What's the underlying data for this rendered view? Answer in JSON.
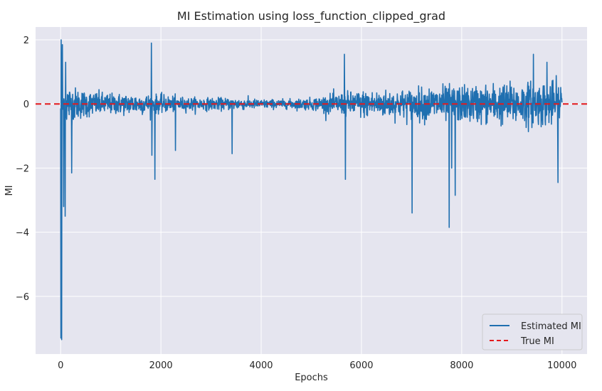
{
  "chart_data": {
    "type": "line",
    "title": "MI Estimation using loss_function_clipped_grad",
    "xlabel": "Epochs",
    "ylabel": "MI",
    "xlim": [
      -500,
      10500
    ],
    "ylim": [
      -7.8,
      2.4
    ],
    "xticks": [
      0,
      2000,
      4000,
      6000,
      8000,
      10000
    ],
    "xtick_labels": [
      "0",
      "2000",
      "4000",
      "6000",
      "8000",
      "10000"
    ],
    "yticks": [
      2,
      0,
      -2,
      -4,
      -6
    ],
    "ytick_labels": [
      "2",
      "0",
      "−2",
      "−4",
      "−6"
    ],
    "grid": true,
    "legend_position": "lower-right",
    "series": [
      {
        "name": "Estimated MI",
        "color": "#1f6fb0",
        "style": "solid",
        "num_points": 10000,
        "envelope": {
          "x": [
            0,
            200,
            500,
            1000,
            1500,
            2000,
            2500,
            3000,
            3500,
            4000,
            4500,
            5000,
            5500,
            6000,
            6500,
            7000,
            7500,
            8000,
            8500,
            9000,
            9500,
            10000
          ],
          "amplitude": [
            1.0,
            0.6,
            0.45,
            0.35,
            0.35,
            0.3,
            0.22,
            0.2,
            0.2,
            0.15,
            0.15,
            0.2,
            0.35,
            0.45,
            0.45,
            0.5,
            0.6,
            0.6,
            0.65,
            0.7,
            0.75,
            0.75
          ]
        },
        "spikes": [
          {
            "x": 5,
            "y": -7.3
          },
          {
            "x": 20,
            "y": -7.35
          },
          {
            "x": 10,
            "y": 2.0
          },
          {
            "x": 35,
            "y": 1.85
          },
          {
            "x": 60,
            "y": -3.2
          },
          {
            "x": 90,
            "y": -3.5
          },
          {
            "x": 100,
            "y": 1.3
          },
          {
            "x": 220,
            "y": -2.15
          },
          {
            "x": 1810,
            "y": 1.9
          },
          {
            "x": 1820,
            "y": -1.6
          },
          {
            "x": 1880,
            "y": -2.35
          },
          {
            "x": 2290,
            "y": -1.45
          },
          {
            "x": 3420,
            "y": -1.55
          },
          {
            "x": 5660,
            "y": 1.55
          },
          {
            "x": 5680,
            "y": -2.35
          },
          {
            "x": 7010,
            "y": -3.4
          },
          {
            "x": 7750,
            "y": -3.85
          },
          {
            "x": 7800,
            "y": -2.0
          },
          {
            "x": 7870,
            "y": -2.85
          },
          {
            "x": 9430,
            "y": 1.55
          },
          {
            "x": 9920,
            "y": -2.45
          },
          {
            "x": 9700,
            "y": 1.3
          }
        ]
      },
      {
        "name": "True MI",
        "color": "#e41a1c",
        "style": "dashed",
        "y": 0
      }
    ]
  }
}
